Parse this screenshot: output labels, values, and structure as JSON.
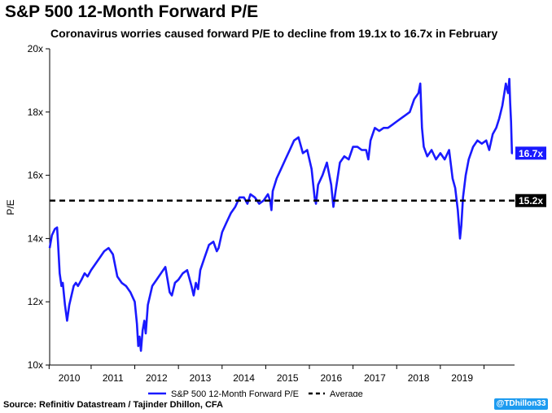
{
  "chart_data": {
    "type": "line",
    "title": "S&P 500 12-Month Forward P/E",
    "subtitle": "Coronavirus worries caused forward P/E to decline from 19.1x to 16.7x in February",
    "ylabel": "P/E",
    "xlabel": "",
    "ylim": [
      10,
      20
    ],
    "xlim": [
      2009.55,
      2020.2
    ],
    "y_ticks": [
      "10x",
      "12x",
      "14x",
      "16x",
      "18x",
      "20x"
    ],
    "y_tick_values": [
      10,
      12,
      14,
      16,
      18,
      20
    ],
    "x_ticks": [
      "2010",
      "2011",
      "2012",
      "2013",
      "2014",
      "2015",
      "2016",
      "2017",
      "2018",
      "2019"
    ],
    "x_tick_values": [
      2010,
      2011,
      2012,
      2013,
      2014,
      2015,
      2016,
      2017,
      2018,
      2019
    ],
    "grid": false,
    "legend_position": "bottom",
    "series": [
      {
        "name": "S&P 500 12-Month Forward P/E",
        "color": "#1a1aff",
        "x": [
          2009.55,
          2009.6,
          2009.67,
          2009.72,
          2009.74,
          2009.78,
          2009.82,
          2009.85,
          2009.9,
          2009.95,
          2010.0,
          2010.05,
          2010.1,
          2010.15,
          2010.2,
          2010.28,
          2010.35,
          2010.42,
          2010.5,
          2010.6,
          2010.7,
          2010.8,
          2010.9,
          2011.0,
          2011.1,
          2011.2,
          2011.3,
          2011.4,
          2011.5,
          2011.55,
          2011.58,
          2011.61,
          2011.64,
          2011.68,
          2011.72,
          2011.75,
          2011.8,
          2011.85,
          2011.9,
          2012.0,
          2012.1,
          2012.2,
          2012.25,
          2012.3,
          2012.35,
          2012.42,
          2012.5,
          2012.6,
          2012.7,
          2012.8,
          2012.85,
          2012.9,
          2012.95,
          2013.0,
          2013.1,
          2013.2,
          2013.3,
          2013.38,
          2013.42,
          2013.5,
          2013.6,
          2013.7,
          2013.8,
          2013.9,
          2014.0,
          2014.08,
          2014.15,
          2014.25,
          2014.35,
          2014.45,
          2014.55,
          2014.6,
          2014.63,
          2014.66,
          2014.75,
          2014.85,
          2014.95,
          2015.05,
          2015.15,
          2015.25,
          2015.35,
          2015.45,
          2015.55,
          2015.62,
          2015.65,
          2015.7,
          2015.8,
          2015.9,
          2016.0,
          2016.05,
          2016.1,
          2016.2,
          2016.3,
          2016.4,
          2016.5,
          2016.6,
          2016.7,
          2016.8,
          2016.85,
          2016.9,
          2017.0,
          2017.1,
          2017.2,
          2017.3,
          2017.4,
          2017.5,
          2017.6,
          2017.7,
          2017.8,
          2017.9,
          2018.0,
          2018.04,
          2018.08,
          2018.12,
          2018.2,
          2018.3,
          2018.4,
          2018.5,
          2018.6,
          2018.7,
          2018.78,
          2018.84,
          2018.9,
          2018.95,
          2018.98,
          2019.02,
          2019.08,
          2019.15,
          2019.25,
          2019.35,
          2019.45,
          2019.55,
          2019.62,
          2019.7,
          2019.78,
          2019.85,
          2019.92,
          2020.0,
          2020.05,
          2020.08,
          2020.1,
          2020.12,
          2020.14,
          2020.16
        ],
        "values": [
          13.7,
          14.1,
          14.3,
          14.35,
          13.9,
          12.9,
          12.5,
          12.6,
          11.9,
          11.4,
          11.9,
          12.2,
          12.5,
          12.6,
          12.5,
          12.7,
          12.9,
          12.8,
          13.0,
          13.2,
          13.4,
          13.6,
          13.7,
          13.5,
          12.8,
          12.6,
          12.5,
          12.3,
          12.0,
          11.3,
          10.6,
          10.9,
          10.45,
          11.1,
          11.4,
          11.0,
          11.9,
          12.2,
          12.5,
          12.7,
          12.9,
          13.1,
          12.7,
          12.3,
          12.2,
          12.6,
          12.7,
          12.9,
          13.0,
          12.5,
          12.2,
          12.6,
          12.4,
          13.0,
          13.4,
          13.8,
          13.9,
          13.6,
          13.7,
          14.2,
          14.5,
          14.8,
          15.0,
          15.3,
          15.3,
          15.1,
          15.4,
          15.3,
          15.1,
          15.2,
          15.4,
          15.2,
          14.9,
          15.5,
          15.9,
          16.2,
          16.5,
          16.8,
          17.1,
          17.2,
          16.7,
          16.8,
          16.2,
          15.3,
          15.1,
          15.7,
          16.0,
          16.4,
          15.7,
          15.0,
          15.5,
          16.4,
          16.6,
          16.5,
          16.9,
          16.9,
          16.8,
          16.8,
          16.5,
          17.1,
          17.5,
          17.4,
          17.5,
          17.5,
          17.6,
          17.7,
          17.8,
          17.9,
          18.0,
          18.4,
          18.6,
          18.9,
          17.5,
          16.9,
          16.6,
          16.8,
          16.5,
          16.7,
          16.5,
          16.8,
          15.9,
          15.6,
          14.9,
          14.0,
          14.4,
          15.3,
          16.0,
          16.5,
          16.9,
          17.1,
          17.0,
          17.1,
          16.8,
          17.3,
          17.5,
          17.8,
          18.2,
          18.9,
          18.6,
          19.05,
          18.3,
          17.7,
          16.7,
          16.7
        ]
      },
      {
        "name": "Average",
        "color": "#000000",
        "style": "dashed",
        "x": [
          2009.55,
          2020.2
        ],
        "values": [
          15.2,
          15.2
        ]
      }
    ],
    "annotations": [
      {
        "label": "16.7x",
        "value": 16.7,
        "color": "#1a1aff"
      },
      {
        "label": "15.2x",
        "value": 15.2,
        "color": "#000000"
      }
    ]
  },
  "footer": {
    "source": "Source: Refinitiv Datastream / Tajinder Dhillon, CFA",
    "handle": "@TDhillon33"
  }
}
